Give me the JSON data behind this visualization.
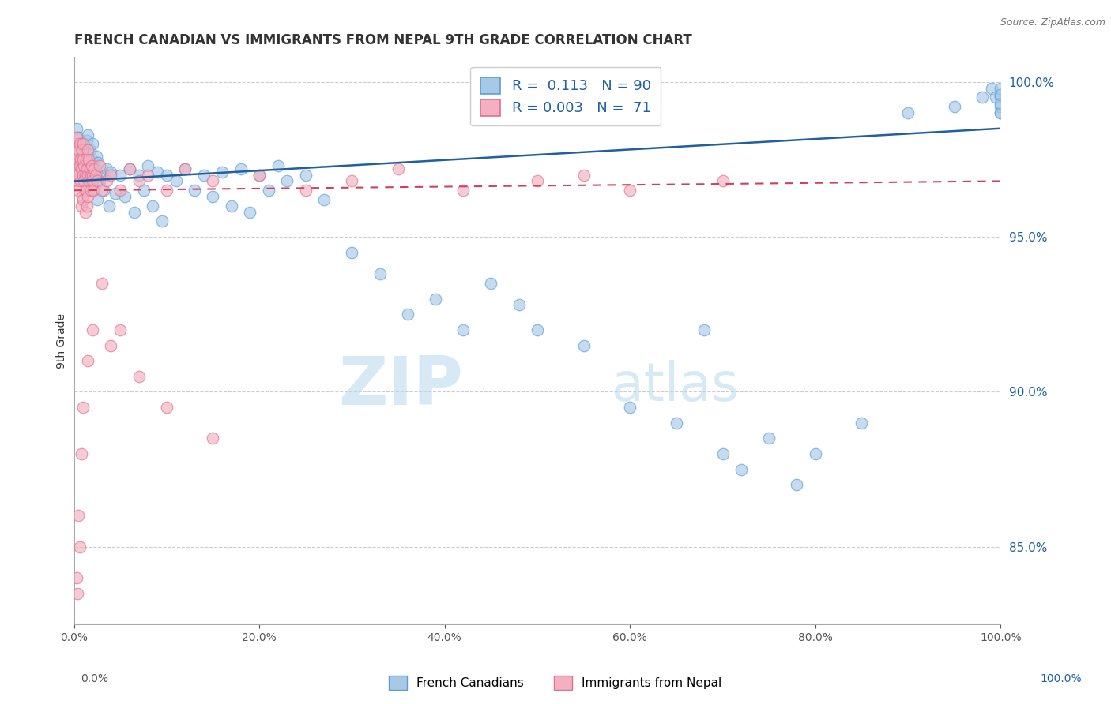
{
  "title": "FRENCH CANADIAN VS IMMIGRANTS FROM NEPAL 9TH GRADE CORRELATION CHART",
  "source": "Source: ZipAtlas.com",
  "ylabel": "9th Grade",
  "right_yticks": [
    100.0,
    95.0,
    90.0,
    85.0
  ],
  "right_ytick_labels": [
    "100.0%",
    "95.0%",
    "90.0%",
    "85.0%"
  ],
  "watermark_zip": "ZIP",
  "watermark_atlas": "atlas",
  "legend_blue_r_val": "0.113",
  "legend_blue_n_val": "90",
  "legend_pink_r_val": "0.003",
  "legend_pink_n_val": "71",
  "legend_label_blue": "French Canadians",
  "legend_label_pink": "Immigrants from Nepal",
  "blue_color": "#a8c8e8",
  "pink_color": "#f4b0c0",
  "blue_edge_color": "#5a9fd4",
  "pink_edge_color": "#e07090",
  "blue_line_color": "#2060a0",
  "pink_line_color": "#d04060",
  "blue_scatter_x": [
    0.3,
    0.4,
    0.5,
    0.6,
    0.7,
    0.8,
    0.9,
    1.0,
    1.0,
    1.1,
    1.2,
    1.3,
    1.4,
    1.5,
    1.5,
    1.6,
    1.7,
    1.8,
    1.9,
    2.0,
    2.0,
    2.1,
    2.2,
    2.3,
    2.4,
    2.5,
    2.6,
    2.8,
    3.0,
    3.2,
    3.5,
    3.8,
    4.0,
    4.5,
    5.0,
    5.5,
    6.0,
    6.5,
    7.0,
    7.5,
    8.0,
    8.5,
    9.0,
    9.5,
    10.0,
    11.0,
    12.0,
    13.0,
    14.0,
    15.0,
    16.0,
    17.0,
    18.0,
    19.0,
    20.0,
    21.0,
    22.0,
    23.0,
    25.0,
    27.0,
    30.0,
    33.0,
    36.0,
    39.0,
    42.0,
    45.0,
    48.0,
    50.0,
    55.0,
    60.0,
    65.0,
    68.0,
    70.0,
    72.0,
    75.0,
    78.0,
    80.0,
    85.0,
    90.0,
    95.0,
    98.0,
    99.0,
    99.5,
    100.0,
    100.0,
    100.0,
    100.0,
    100.0,
    100.0,
    100.0
  ],
  "blue_scatter_y": [
    98.5,
    97.8,
    98.2,
    97.5,
    98.0,
    97.3,
    97.8,
    97.6,
    98.0,
    97.4,
    97.9,
    97.2,
    98.1,
    97.5,
    98.3,
    97.0,
    97.8,
    96.8,
    97.5,
    97.2,
    98.0,
    96.5,
    97.3,
    97.0,
    97.6,
    96.2,
    97.4,
    96.8,
    97.0,
    96.5,
    97.2,
    96.0,
    97.1,
    96.4,
    97.0,
    96.3,
    97.2,
    95.8,
    97.0,
    96.5,
    97.3,
    96.0,
    97.1,
    95.5,
    97.0,
    96.8,
    97.2,
    96.5,
    97.0,
    96.3,
    97.1,
    96.0,
    97.2,
    95.8,
    97.0,
    96.5,
    97.3,
    96.8,
    97.0,
    96.2,
    94.5,
    93.8,
    92.5,
    93.0,
    92.0,
    93.5,
    92.8,
    92.0,
    91.5,
    89.5,
    89.0,
    92.0,
    88.0,
    87.5,
    88.5,
    87.0,
    88.0,
    89.0,
    99.0,
    99.2,
    99.5,
    99.8,
    99.5,
    99.0,
    99.2,
    99.5,
    99.8,
    99.0,
    99.3,
    99.6
  ],
  "pink_scatter_x": [
    0.1,
    0.2,
    0.2,
    0.3,
    0.3,
    0.4,
    0.4,
    0.5,
    0.5,
    0.5,
    0.6,
    0.6,
    0.7,
    0.7,
    0.8,
    0.8,
    0.9,
    0.9,
    1.0,
    1.0,
    1.0,
    1.0,
    1.1,
    1.1,
    1.2,
    1.2,
    1.3,
    1.3,
    1.4,
    1.4,
    1.5,
    1.5,
    1.5,
    1.6,
    1.6,
    1.7,
    1.8,
    1.8,
    1.9,
    2.0,
    2.0,
    2.1,
    2.2,
    2.3,
    2.5,
    2.8,
    3.0,
    3.5,
    4.0,
    5.0,
    6.0,
    7.0,
    8.0,
    10.0,
    12.0,
    15.0,
    20.0,
    25.0,
    30.0,
    35.0,
    42.0,
    50.0,
    55.0,
    60.0,
    70.0,
    3.0,
    4.0,
    5.0,
    7.0,
    10.0,
    15.0
  ],
  "pink_scatter_y": [
    97.8,
    98.0,
    97.5,
    97.2,
    98.2,
    96.8,
    97.5,
    97.0,
    97.8,
    96.5,
    97.3,
    98.0,
    96.8,
    97.5,
    97.2,
    96.0,
    97.8,
    96.3,
    97.5,
    97.0,
    96.2,
    98.0,
    96.8,
    97.3,
    97.0,
    95.8,
    97.5,
    96.5,
    97.2,
    96.0,
    97.8,
    97.0,
    96.3,
    97.5,
    96.8,
    97.2,
    97.0,
    96.5,
    97.3,
    97.0,
    96.8,
    96.5,
    97.2,
    97.0,
    96.8,
    97.3,
    96.5,
    96.8,
    97.0,
    96.5,
    97.2,
    96.8,
    97.0,
    96.5,
    97.2,
    96.8,
    97.0,
    96.5,
    96.8,
    97.2,
    96.5,
    96.8,
    97.0,
    96.5,
    96.8,
    93.5,
    91.5,
    92.0,
    90.5,
    89.5,
    88.5
  ],
  "pink_low_x": [
    0.3,
    0.5,
    0.8,
    1.0,
    1.5,
    2.0,
    0.4,
    0.6
  ],
  "pink_low_y": [
    84.0,
    86.0,
    88.0,
    89.5,
    91.0,
    92.0,
    83.5,
    85.0
  ],
  "xmin": 0.0,
  "xmax": 100.0,
  "ymin": 82.5,
  "ymax": 100.8,
  "figsize": [
    14.06,
    8.92
  ],
  "dpi": 100
}
